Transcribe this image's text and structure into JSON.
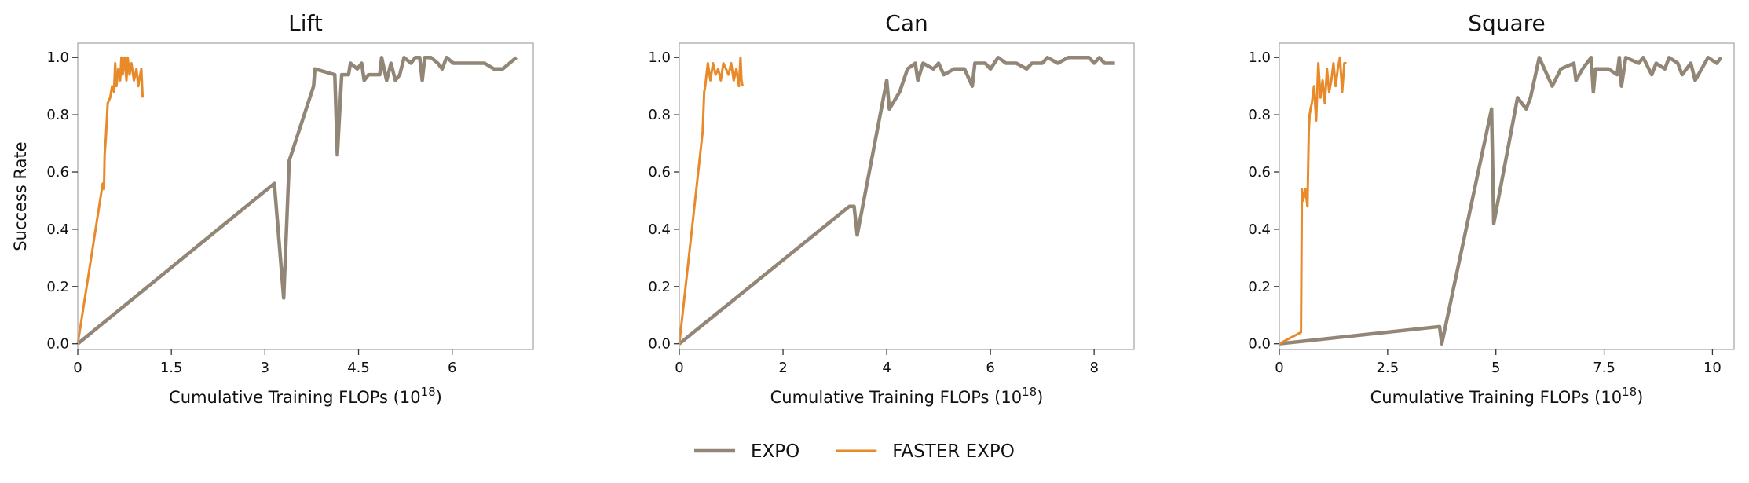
{
  "chart_data": [
    {
      "type": "line",
      "title": "Lift",
      "x_label": "Cumulative Training FLOPs (10^18)",
      "y_label": "Success Rate",
      "xlim": [
        0,
        7.3
      ],
      "ylim": [
        -0.02,
        1.05
      ],
      "xticks": [
        0,
        1.5,
        3,
        4.5,
        6
      ],
      "yticks": [
        {
          "value": 0,
          "label": "0.0"
        },
        {
          "value": 0.2,
          "label": "0.2"
        },
        {
          "value": 0.4,
          "label": "0.4"
        },
        {
          "value": 0.6,
          "label": "0.6"
        },
        {
          "value": 0.8,
          "label": "0.8"
        },
        {
          "value": 1.0,
          "label": "1.0"
        }
      ],
      "series": [
        {
          "name": "EXPO",
          "color": "#928677",
          "x": [
            0,
            3.15,
            3.3,
            3.39,
            3.78,
            3.8,
            4.12,
            4.16,
            4.23,
            4.34,
            4.37,
            4.48,
            4.55,
            4.59,
            4.66,
            4.84,
            4.87,
            4.95,
            5.02,
            5.09,
            5.16,
            5.23,
            5.34,
            5.41,
            5.48,
            5.52,
            5.56,
            5.66,
            5.77,
            5.84,
            5.91,
            6.02,
            6.27,
            6.52,
            6.67,
            6.81,
            7.03
          ],
          "values": [
            0,
            0.56,
            0.16,
            0.64,
            0.9,
            0.96,
            0.94,
            0.66,
            0.94,
            0.94,
            0.98,
            0.96,
            0.98,
            0.92,
            0.94,
            0.94,
            1.0,
            0.92,
            0.98,
            0.92,
            0.94,
            1.0,
            0.98,
            1.0,
            1.0,
            0.92,
            1.0,
            1.0,
            0.98,
            0.96,
            1.0,
            0.98,
            0.98,
            0.98,
            0.96,
            0.96,
            1.0
          ]
        },
        {
          "name": "FASTER EXPO",
          "color": "#e8892a",
          "x": [
            0,
            0.4,
            0.42,
            0.43,
            0.45,
            0.48,
            0.52,
            0.55,
            0.58,
            0.6,
            0.62,
            0.65,
            0.68,
            0.7,
            0.72,
            0.75,
            0.78,
            0.8,
            0.83,
            0.86,
            0.9,
            0.94,
            0.97,
            1.0,
            1.02,
            1.04
          ],
          "values": [
            0,
            0.56,
            0.54,
            0.66,
            0.72,
            0.84,
            0.86,
            0.9,
            0.88,
            0.98,
            0.9,
            0.96,
            0.92,
            1.0,
            0.94,
            1.0,
            0.92,
            1.0,
            0.94,
            0.98,
            0.92,
            0.96,
            0.9,
            0.94,
            0.96,
            0.86
          ]
        }
      ]
    },
    {
      "type": "line",
      "title": "Can",
      "x_label": "Cumulative Training FLOPs (10^18)",
      "xlim": [
        0,
        8.77
      ],
      "ylim": [
        -0.02,
        1.05
      ],
      "xticks": [
        0,
        2,
        4,
        6,
        8
      ],
      "yticks": [
        {
          "value": 0,
          "label": "0.0"
        },
        {
          "value": 0.2,
          "label": "0.2"
        },
        {
          "value": 0.4,
          "label": "0.4"
        },
        {
          "value": 0.6,
          "label": "0.6"
        },
        {
          "value": 0.8,
          "label": "0.8"
        },
        {
          "value": 1.0,
          "label": "1.0"
        }
      ],
      "series": [
        {
          "name": "EXPO",
          "color": "#928677",
          "x": [
            0,
            3.28,
            3.37,
            3.43,
            4.0,
            4.05,
            4.25,
            4.4,
            4.55,
            4.6,
            4.7,
            4.9,
            5.0,
            5.1,
            5.3,
            5.5,
            5.65,
            5.7,
            5.9,
            6.0,
            6.15,
            6.3,
            6.5,
            6.7,
            6.8,
            7.0,
            7.1,
            7.3,
            7.5,
            7.7,
            7.9,
            8.0,
            8.1,
            8.2,
            8.4
          ],
          "values": [
            0,
            0.48,
            0.48,
            0.38,
            0.92,
            0.82,
            0.88,
            0.96,
            0.98,
            0.92,
            0.98,
            0.96,
            0.98,
            0.94,
            0.96,
            0.96,
            0.9,
            0.98,
            0.98,
            0.96,
            1.0,
            0.98,
            0.98,
            0.96,
            0.98,
            0.98,
            1.0,
            0.98,
            1.0,
            1.0,
            1.0,
            0.98,
            1.0,
            0.98,
            0.98
          ]
        },
        {
          "name": "FASTER EXPO",
          "color": "#e8892a",
          "x": [
            0,
            0.45,
            0.48,
            0.5,
            0.55,
            0.6,
            0.65,
            0.7,
            0.75,
            0.8,
            0.85,
            0.9,
            0.95,
            1.0,
            1.05,
            1.1,
            1.15,
            1.18,
            1.2,
            1.22
          ],
          "values": [
            0,
            0.74,
            0.88,
            0.9,
            0.98,
            0.92,
            0.98,
            0.94,
            0.96,
            0.92,
            0.98,
            0.96,
            0.94,
            0.98,
            0.92,
            0.96,
            0.9,
            1.0,
            0.92,
            0.9
          ]
        }
      ]
    },
    {
      "type": "line",
      "title": "Square",
      "x_label": "Cumulative Training FLOPs (10^18)",
      "xlim": [
        0,
        10.5
      ],
      "ylim": [
        -0.02,
        1.05
      ],
      "xticks": [
        0,
        2.5,
        5,
        7.5,
        10
      ],
      "yticks": [
        {
          "value": 0,
          "label": "0.0"
        },
        {
          "value": 0.2,
          "label": "0.2"
        },
        {
          "value": 0.4,
          "label": "0.4"
        },
        {
          "value": 0.6,
          "label": "0.6"
        },
        {
          "value": 0.8,
          "label": "0.8"
        },
        {
          "value": 1.0,
          "label": "1.0"
        }
      ],
      "series": [
        {
          "name": "EXPO",
          "color": "#928677",
          "x": [
            0,
            3.7,
            3.75,
            4.9,
            4.95,
            5.5,
            5.7,
            5.8,
            6.0,
            6.3,
            6.5,
            6.8,
            6.85,
            7.0,
            7.2,
            7.25,
            7.3,
            7.6,
            7.8,
            7.85,
            7.9,
            8.0,
            8.3,
            8.4,
            8.6,
            8.7,
            8.9,
            9.0,
            9.2,
            9.3,
            9.5,
            9.6,
            9.9,
            10.1,
            10.2
          ],
          "values": [
            0,
            0.06,
            0.0,
            0.82,
            0.42,
            0.86,
            0.82,
            0.86,
            1.0,
            0.9,
            0.96,
            0.98,
            0.92,
            0.96,
            1.0,
            0.88,
            0.96,
            0.96,
            0.94,
            1.0,
            0.9,
            1.0,
            0.98,
            1.0,
            0.94,
            0.98,
            0.96,
            1.0,
            0.98,
            0.94,
            0.98,
            0.92,
            1.0,
            0.98,
            1.0
          ]
        },
        {
          "name": "FASTER EXPO",
          "color": "#e8892a",
          "x": [
            0,
            0.5,
            0.52,
            0.55,
            0.6,
            0.65,
            0.68,
            0.7,
            0.72,
            0.75,
            0.8,
            0.85,
            0.9,
            0.95,
            1.0,
            1.05,
            1.1,
            1.15,
            1.2,
            1.25,
            1.3,
            1.35,
            1.4,
            1.45,
            1.5,
            1.55
          ],
          "values": [
            0,
            0.04,
            0.54,
            0.5,
            0.54,
            0.48,
            0.74,
            0.8,
            0.82,
            0.84,
            0.9,
            0.78,
            0.98,
            0.86,
            0.92,
            0.84,
            0.96,
            0.88,
            0.92,
            0.98,
            0.9,
            0.96,
            1.0,
            0.88,
            0.98,
            0.98
          ]
        }
      ]
    }
  ]
}
